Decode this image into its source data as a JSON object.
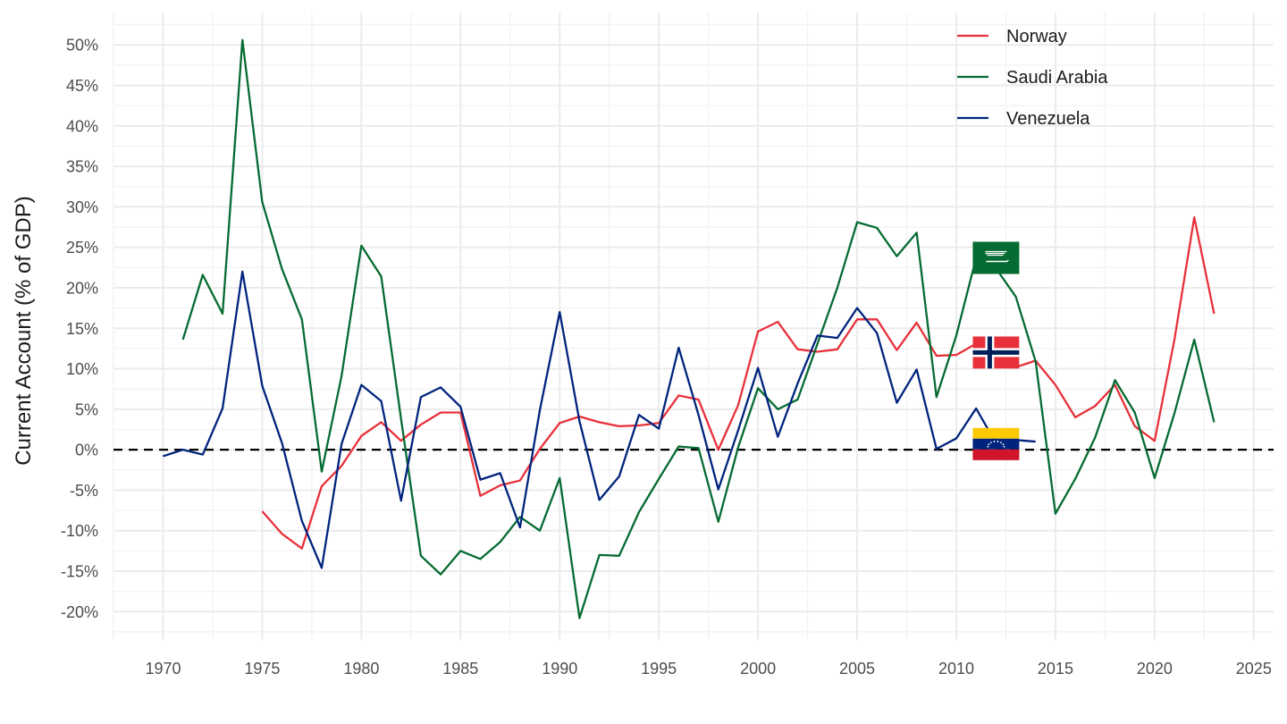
{
  "chart_data": {
    "type": "line",
    "title": "",
    "xlabel": "",
    "ylabel": "Current Account (% of GDP)",
    "xlim": [
      1967.5,
      2026
    ],
    "ylim": [
      -23.5,
      54
    ],
    "x_ticks": [
      1970,
      1975,
      1980,
      1985,
      1990,
      1995,
      2000,
      2005,
      2010,
      2015,
      2020,
      2025
    ],
    "x_tick_labels": [
      "1970",
      "1975",
      "1980",
      "1985",
      "1990",
      "1995",
      "2000",
      "2005",
      "2010",
      "2015",
      "2020",
      "2025"
    ],
    "y_ticks": [
      -20,
      -15,
      -10,
      -5,
      0,
      5,
      10,
      15,
      20,
      25,
      30,
      35,
      40,
      45,
      50
    ],
    "y_tick_labels": [
      "-20%",
      "-15%",
      "-10%",
      "-5%",
      "0%",
      "5%",
      "10%",
      "15%",
      "20%",
      "25%",
      "30%",
      "35%",
      "40%",
      "45%",
      "50%"
    ],
    "grid": true,
    "reference_line": {
      "y": 0,
      "style": "dashed",
      "color": "#000000"
    },
    "legend": {
      "position": "top-right"
    },
    "series": [
      {
        "name": "Norway",
        "color": "#E8303A",
        "flag": "norway-flag",
        "flag_at": [
          2012,
          12
        ],
        "x": [
          1975,
          1976,
          1977,
          1978,
          1979,
          1980,
          1981,
          1982,
          1983,
          1984,
          1985,
          1986,
          1987,
          1988,
          1989,
          1990,
          1991,
          1992,
          1993,
          1994,
          1995,
          1996,
          1997,
          1998,
          1999,
          2000,
          2001,
          2002,
          2003,
          2004,
          2005,
          2006,
          2007,
          2008,
          2009,
          2010,
          2011,
          2012,
          2013,
          2014,
          2015,
          2016,
          2017,
          2018,
          2019,
          2020,
          2021,
          2022,
          2023
        ],
        "y": [
          -7.6,
          -10.4,
          -12.2,
          -4.5,
          -2.0,
          1.7,
          3.4,
          1.1,
          3.1,
          4.6,
          4.6,
          -5.7,
          -4.4,
          -3.8,
          0.1,
          3.3,
          4.1,
          3.4,
          2.9,
          3.0,
          3.3,
          6.7,
          6.2,
          0.0,
          5.5,
          14.6,
          15.8,
          12.4,
          12.1,
          12.4,
          16.1,
          16.1,
          12.3,
          15.7,
          11.6,
          11.7,
          13.1,
          12.5,
          10.2,
          11.0,
          8.0,
          4.0,
          5.4,
          8.0,
          2.9,
          1.1,
          13.6,
          28.7,
          16.8
        ]
      },
      {
        "name": "Saudi Arabia",
        "color": "#066B32",
        "flag": "saudi-arabia-flag",
        "flag_at": [
          2012,
          23.7
        ],
        "x": [
          1971,
          1972,
          1973,
          1974,
          1975,
          1976,
          1977,
          1978,
          1979,
          1980,
          1981,
          1982,
          1983,
          1984,
          1985,
          1986,
          1987,
          1988,
          1989,
          1990,
          1991,
          1992,
          1993,
          1994,
          1995,
          1996,
          1997,
          1998,
          1999,
          2000,
          2001,
          2002,
          2003,
          2004,
          2005,
          2006,
          2007,
          2008,
          2009,
          2010,
          2011,
          2012,
          2013,
          2014,
          2015,
          2016,
          2017,
          2018,
          2019,
          2020,
          2021,
          2022,
          2023
        ],
        "y": [
          13.6,
          21.6,
          16.8,
          50.6,
          30.6,
          22.3,
          16.1,
          -2.7,
          9.1,
          25.2,
          21.4,
          3.8,
          -13.1,
          -15.4,
          -12.5,
          -13.5,
          -11.4,
          -8.3,
          -10.0,
          -3.5,
          -20.8,
          -13.0,
          -13.1,
          -7.7,
          -3.6,
          0.4,
          0.2,
          -8.9,
          0.3,
          7.6,
          5.0,
          6.2,
          13.1,
          20.0,
          28.1,
          27.4,
          23.9,
          26.8,
          6.5,
          14.1,
          23.7,
          22.4,
          18.9,
          10.9,
          -7.9,
          -3.6,
          1.5,
          8.6,
          4.6,
          -3.5,
          4.5,
          13.6,
          3.4
        ]
      },
      {
        "name": "Venezuela",
        "color": "#00247D",
        "flag": "venezuela-flag",
        "flag_at": [
          2012,
          0.7
        ],
        "x": [
          1970,
          1971,
          1972,
          1973,
          1974,
          1975,
          1976,
          1977,
          1978,
          1979,
          1980,
          1981,
          1982,
          1983,
          1984,
          1985,
          1986,
          1987,
          1988,
          1989,
          1990,
          1991,
          1992,
          1993,
          1994,
          1995,
          1996,
          1997,
          1998,
          1999,
          2000,
          2001,
          2002,
          2003,
          2004,
          2005,
          2006,
          2007,
          2008,
          2009,
          2010,
          2011,
          2012,
          2013,
          2014
        ],
        "y": [
          -0.8,
          0.0,
          -0.6,
          5.1,
          22.0,
          7.9,
          0.8,
          -8.8,
          -14.6,
          0.7,
          8.0,
          6.0,
          -6.3,
          6.5,
          7.7,
          5.3,
          -3.7,
          -2.9,
          -9.6,
          4.9,
          17.0,
          3.5,
          -6.2,
          -3.3,
          4.3,
          2.6,
          12.6,
          4.3,
          -4.9,
          2.4,
          10.1,
          1.6,
          8.2,
          14.1,
          13.8,
          17.5,
          14.4,
          5.8,
          9.9,
          0.1,
          1.4,
          5.1,
          0.8,
          1.2,
          1.0
        ]
      }
    ]
  }
}
